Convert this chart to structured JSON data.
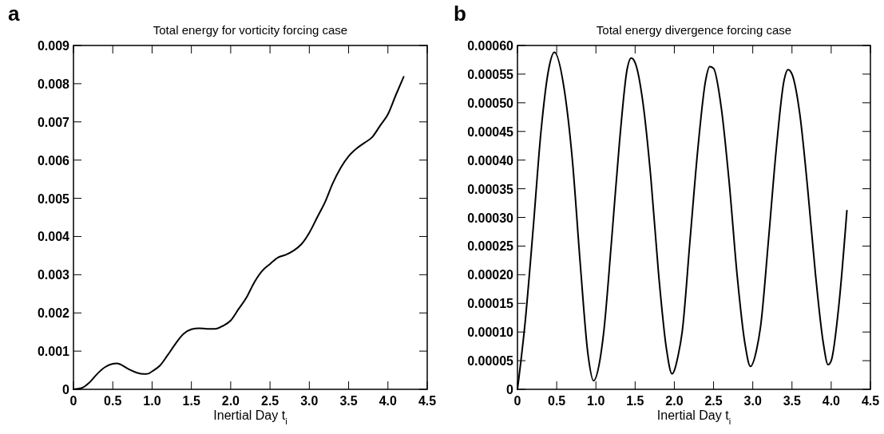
{
  "chart_data": [
    {
      "type": "line",
      "title": "Total energy for vorticity forcing case",
      "xlabel": "Inertial Day t$_{i}$",
      "annotations": [
        "a"
      ],
      "xlim": [
        0,
        4.5
      ],
      "ylim": [
        0,
        0.009
      ],
      "xticks": [
        0,
        0.5,
        {
          "value": 1,
          "label": "1.0"
        },
        1.5,
        {
          "value": 2,
          "label": "2.0"
        },
        2.5,
        {
          "value": 3,
          "label": "3.0"
        },
        3.5,
        {
          "value": 4,
          "label": "4.0"
        },
        4.5
      ],
      "yticks": [
        0,
        0.001,
        0.002,
        0.003,
        0.004,
        0.005,
        0.006,
        0.007,
        0.008,
        0.009
      ],
      "grid": false,
      "marker": "none",
      "line_style": "solid",
      "x": [
        0,
        0.1,
        0.2,
        0.3,
        0.4,
        0.5,
        0.55,
        0.6,
        0.7,
        0.8,
        0.9,
        0.95,
        1.0,
        1.1,
        1.2,
        1.3,
        1.4,
        1.5,
        1.6,
        1.7,
        1.8,
        1.9,
        2.0,
        2.1,
        2.2,
        2.3,
        2.4,
        2.5,
        2.6,
        2.7,
        2.8,
        2.9,
        3.0,
        3.1,
        3.2,
        3.3,
        3.4,
        3.5,
        3.6,
        3.7,
        3.8,
        3.9,
        4.0,
        4.1,
        4.2
      ],
      "series": [
        {
          "color": "#000000",
          "values": [
            0,
            3e-05,
            0.00017,
            0.0004,
            0.00058,
            0.00067,
            0.00068,
            0.00065,
            0.00053,
            0.00044,
            0.0004,
            0.00041,
            0.00047,
            0.00062,
            0.0009,
            0.0012,
            0.00145,
            0.00157,
            0.0016,
            0.00158,
            0.00158,
            0.00166,
            0.0018,
            0.0021,
            0.0024,
            0.0028,
            0.0031,
            0.00328,
            0.00345,
            0.00352,
            0.00363,
            0.0038,
            0.0041,
            0.0045,
            0.0049,
            0.0054,
            0.0058,
            0.0061,
            0.0063,
            0.00645,
            0.0066,
            0.0069,
            0.0072,
            0.0077,
            0.00818
          ]
        }
      ]
    },
    {
      "type": "line",
      "title": "Total energy divergence forcing case",
      "xlabel": "Inertial Day t$_{i}$",
      "annotations": [
        "b"
      ],
      "xlim": [
        0,
        4.5
      ],
      "ylim": [
        0,
        0.0006
      ],
      "xticks": [
        0,
        0.5,
        {
          "value": 1,
          "label": "1.0"
        },
        1.5,
        {
          "value": 2,
          "label": "2.0"
        },
        2.5,
        {
          "value": 3,
          "label": "3.0"
        },
        3.5,
        {
          "value": 4,
          "label": "4.0"
        },
        4.5
      ],
      "yticks": [
        0,
        {
          "value": 5e-05,
          "label": "0.00005"
        },
        {
          "value": 0.0001,
          "label": "0.00010"
        },
        {
          "value": 0.00015,
          "label": "0.00015"
        },
        {
          "value": 0.0002,
          "label": "0.00020"
        },
        {
          "value": 0.00025,
          "label": "0.00025"
        },
        {
          "value": 0.0003,
          "label": "0.00030"
        },
        {
          "value": 0.00035,
          "label": "0.00035"
        },
        {
          "value": 0.0004,
          "label": "0.00040"
        },
        {
          "value": 0.00045,
          "label": "0.00045"
        },
        {
          "value": 0.0005,
          "label": "0.00050"
        },
        {
          "value": 0.00055,
          "label": "0.00055"
        },
        {
          "value": 0.0006,
          "label": "0.00060"
        }
      ],
      "grid": false,
      "marker": "none",
      "line_style": "solid",
      "x": [
        0,
        0.1,
        0.2,
        0.3,
        0.4,
        0.47,
        0.6,
        0.7,
        0.8,
        0.9,
        0.97,
        1.05,
        1.1,
        1.2,
        1.3,
        1.4,
        1.45,
        1.5,
        1.6,
        1.7,
        1.8,
        1.9,
        1.97,
        2.05,
        2.1,
        2.2,
        2.3,
        2.4,
        2.45,
        2.5,
        2.6,
        2.7,
        2.8,
        2.9,
        2.97,
        3.05,
        3.1,
        3.2,
        3.3,
        3.4,
        3.45,
        3.5,
        3.6,
        3.7,
        3.8,
        3.9,
        3.96,
        4.0,
        4.1,
        4.2
      ],
      "series": [
        {
          "color": "#000000",
          "values": [
            0,
            0.00012,
            0.00028,
            0.00045,
            0.00056,
            0.000588,
            0.00052,
            0.0004,
            0.00022,
            6e-05,
            1.5e-05,
            5e-05,
            0.0001,
            0.00026,
            0.00043,
            0.00056,
            0.000578,
            0.00057,
            0.0005,
            0.00037,
            0.0002,
            7e-05,
            2.7e-05,
            6e-05,
            0.0001,
            0.00026,
            0.00042,
            0.00054,
            0.000563,
            0.00056,
            0.00049,
            0.00036,
            0.0002,
            8e-05,
            4e-05,
            7e-05,
            0.00011,
            0.00026,
            0.00042,
            0.00054,
            0.000558,
            0.00055,
            0.00048,
            0.00035,
            0.0002,
            8e-05,
            4.3e-05,
            5e-05,
            0.00015,
            0.000312
          ]
        }
      ]
    }
  ]
}
